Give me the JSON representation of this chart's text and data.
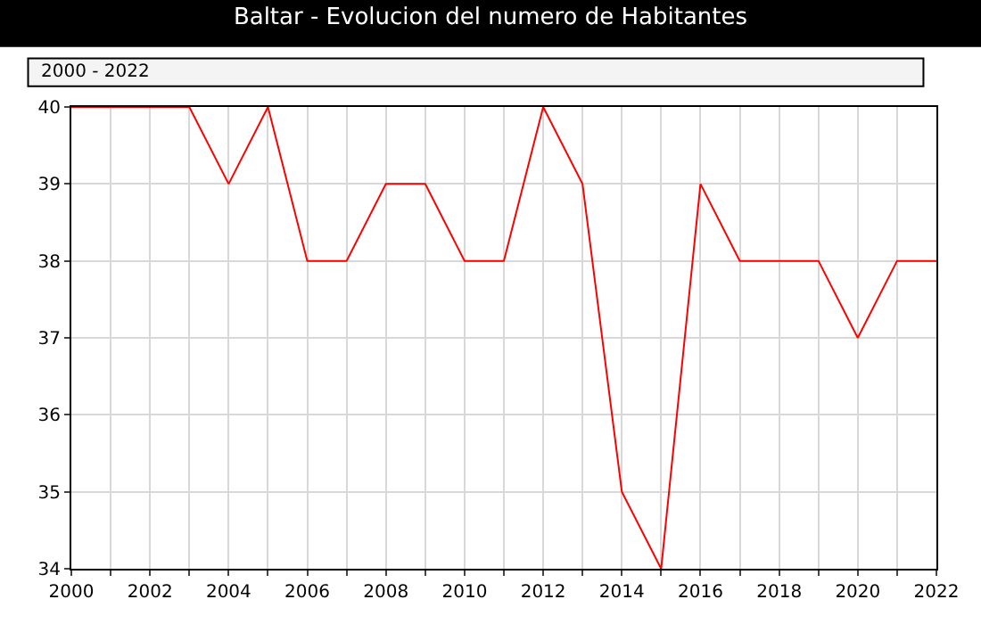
{
  "chart_data": {
    "type": "line",
    "title": "Baltar - Evolucion del numero de Habitantes",
    "annotations": [
      "2000 - 2022"
    ],
    "x": [
      2000,
      2001,
      2002,
      2003,
      2004,
      2005,
      2006,
      2007,
      2008,
      2009,
      2010,
      2011,
      2012,
      2013,
      2014,
      2015,
      2016,
      2017,
      2018,
      2019,
      2020,
      2021,
      2022
    ],
    "series": [
      {
        "color": "#ff0000",
        "values": [
          40,
          40,
          40,
          40,
          39,
          40,
          38,
          38,
          39,
          39,
          38,
          38,
          40,
          39,
          35,
          34,
          39,
          38,
          38,
          38,
          37,
          38,
          38
        ]
      }
    ],
    "xlim": [
      2000,
      2022
    ],
    "xticks": [
      2000,
      {
        "value": 2001,
        "label": null
      },
      2002,
      {
        "value": 2003,
        "label": null
      },
      2004,
      {
        "value": 2005,
        "label": null
      },
      2006,
      {
        "value": 2007,
        "label": null
      },
      2008,
      {
        "value": 2009,
        "label": null
      },
      2010,
      {
        "value": 2011,
        "label": null
      },
      2012,
      {
        "value": 2013,
        "label": null
      },
      2014,
      {
        "value": 2015,
        "label": null
      },
      2016,
      {
        "value": 2017,
        "label": null
      },
      2018,
      {
        "value": 2019,
        "label": null
      },
      2020,
      {
        "value": 2021,
        "label": null
      },
      2022
    ],
    "ylim": [
      34,
      40
    ],
    "yticks": [
      34,
      35,
      36,
      37,
      38,
      39,
      40
    ],
    "grid": true,
    "marker": "none",
    "line_style": "solid"
  }
}
